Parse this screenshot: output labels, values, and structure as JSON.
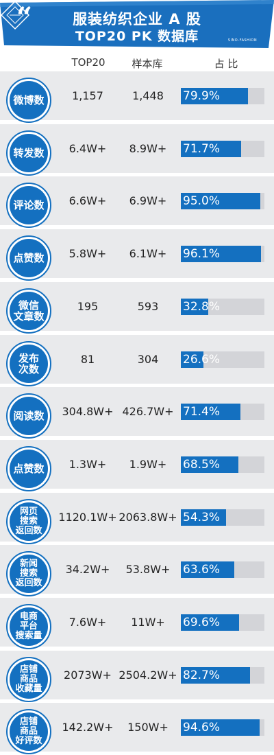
{
  "header": {
    "quote_mark": "“",
    "title_line1": "服装纺织企业 A 股",
    "title_line2": "TOP20 PK 数据库",
    "logo_text": "SINO-FASHION"
  },
  "columns": {
    "top20": "TOP20",
    "sample": "样本库",
    "ratio": "占 比"
  },
  "colors": {
    "banner": "#1a6fbe",
    "badge": "#1470c0",
    "bar": "#1470c0",
    "track": "#d3d4d8",
    "row_bg": "#e9eaec"
  },
  "chart_data": {
    "type": "table",
    "columns": [
      "TOP20",
      "样本库",
      "占 比"
    ],
    "rows": [
      {
        "metric": "微博数",
        "top20": "1,157",
        "sample": "1,448",
        "ratio_label": "79.9%",
        "ratio": 79.9
      },
      {
        "metric": "转发数",
        "top20": "6.4W+",
        "sample": "8.9W+",
        "ratio_label": "71.7%",
        "ratio": 71.7
      },
      {
        "metric": "评论数",
        "top20": "6.6W+",
        "sample": "6.9W+",
        "ratio_label": "95.0%",
        "ratio": 95.0
      },
      {
        "metric": "点赞数",
        "top20": "5.8W+",
        "sample": "6.1W+",
        "ratio_label": "96.1%",
        "ratio": 96.1
      },
      {
        "metric": "微信\n文章数",
        "top20": "195",
        "sample": "593",
        "ratio_label": "32.8%",
        "ratio": 32.8
      },
      {
        "metric": "发布\n次数",
        "top20": "81",
        "sample": "304",
        "ratio_label": "26.6%",
        "ratio": 26.6
      },
      {
        "metric": "阅读数",
        "top20": "304.8W+",
        "sample": "426.7W+",
        "ratio_label": "71.4%",
        "ratio": 71.4
      },
      {
        "metric": "点赞数",
        "top20": "1.3W+",
        "sample": "1.9W+",
        "ratio_label": "68.5%",
        "ratio": 68.5
      },
      {
        "metric": "网页\n搜索\n返回数",
        "top20": "1120.1W+",
        "sample": "2063.8W+",
        "ratio_label": "54.3%",
        "ratio": 54.3
      },
      {
        "metric": "新闻\n搜索\n返回数",
        "top20": "34.2W+",
        "sample": "53.8W+",
        "ratio_label": "63.6%",
        "ratio": 63.6
      },
      {
        "metric": "电商\n平台\n搜索量",
        "top20": "7.6W+",
        "sample": "11W+",
        "ratio_label": "69.6%",
        "ratio": 69.6
      },
      {
        "metric": "店铺\n商品\n收藏量",
        "top20": "2073W+",
        "sample": "2504.2W+",
        "ratio_label": "82.7%",
        "ratio": 82.7
      },
      {
        "metric": "店铺\n商品\n好评数",
        "top20": "142.2W+",
        "sample": "150W+",
        "ratio_label": "94.6%",
        "ratio": 94.6
      }
    ]
  }
}
